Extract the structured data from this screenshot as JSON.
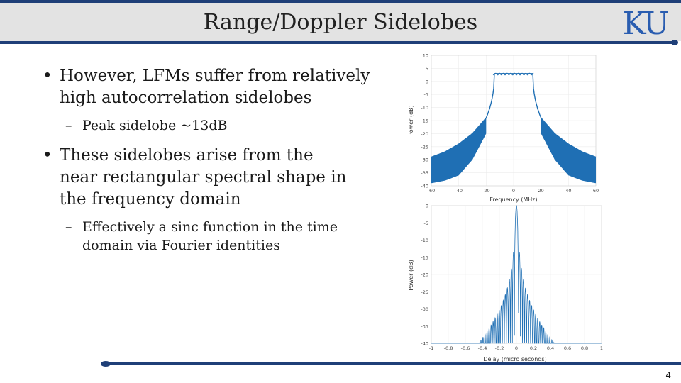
{
  "slide": {
    "title": "Range/Doppler Sidelobes",
    "logo_text": "KU",
    "page_number": "4"
  },
  "bullets": [
    {
      "level": 1,
      "text": "However, LFMs suffer from relatively high autocorrelation sidelobes"
    },
    {
      "level": 2,
      "text": "Peak sidelobe ~13dB"
    },
    {
      "level": 1,
      "text": "These sidelobes arise from the near rectangular spectral shape in the frequency domain"
    },
    {
      "level": 2,
      "text": "Effectively a sinc function in the time domain via Fourier identities"
    }
  ],
  "chart_data": [
    {
      "type": "line",
      "xlabel": "Frequency (MHz)",
      "ylabel": "Power (dB)",
      "xlim": [
        -60,
        60
      ],
      "ylim": [
        -40,
        10
      ],
      "x_ticks": [
        "-60",
        "-40",
        "-20",
        "0",
        "20",
        "40",
        "60"
      ],
      "y_ticks": [
        "10",
        "5",
        "0",
        "-5",
        "-10",
        "-15",
        "-20",
        "-25",
        "-30",
        "-35",
        "-40"
      ],
      "passband_mhz": [
        -15,
        15
      ],
      "passband_level_db": 3,
      "sideband_envelope_db": [
        {
          "f": 20,
          "upper": -14,
          "lower": -20
        },
        {
          "f": 30,
          "upper": -20,
          "lower": -30
        },
        {
          "f": 40,
          "upper": -24,
          "lower": -36
        },
        {
          "f": 50,
          "upper": -27,
          "lower": -38
        },
        {
          "f": 60,
          "upper": -29,
          "lower": -39
        }
      ],
      "color": "#1f6fb4"
    },
    {
      "type": "line",
      "xlabel": "Delay (micro seconds)",
      "ylabel": "Power (dB)",
      "xlim": [
        -1,
        1
      ],
      "ylim": [
        -40,
        0
      ],
      "x_ticks": [
        "-1",
        "-0.8",
        "-0.6",
        "-0.4",
        "-0.2",
        "0",
        "0.2",
        "0.4",
        "0.6",
        "0.8",
        "1"
      ],
      "y_ticks": [
        "0",
        "-5",
        "-10",
        "-15",
        "-20",
        "-25",
        "-30",
        "-35",
        "-40"
      ],
      "peak_sidelobe_db": -13,
      "color": "#1f6fb4"
    }
  ]
}
